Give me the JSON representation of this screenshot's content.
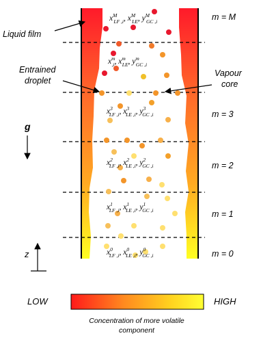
{
  "labels": {
    "liquid_film": "Liquid film",
    "entrained_droplet_line1": "Entrained",
    "entrained_droplet_line2": "droplet",
    "vapour_core_line1": "Vapour",
    "vapour_core_line2": "core",
    "gravity": "g",
    "height": "z"
  },
  "segments": [
    {
      "label": "m = M",
      "x_lf": "x",
      "x_lf_sup": "M",
      "x_lf_sub": "LF ,i",
      "x_le": "x",
      "x_le_sup": "M",
      "x_le_sub": "LE",
      "y_gc": "y",
      "y_gc_sup": "M",
      "y_gc_sub": "GC ,i"
    },
    {
      "label": "",
      "x_lf": "x",
      "x_lf_sup": "m",
      "x_lf_sub": ",i",
      "x_le": "x",
      "x_le_sup": "m",
      "x_le_sub": "LE",
      "y_gc": "y",
      "y_gc_sup": "m",
      "y_gc_sub": "GC ,i"
    },
    {
      "label": "m = 3",
      "x_lf": "x",
      "x_lf_sup": "3",
      "x_lf_sub": "LF ,i",
      "x_le": "x",
      "x_le_sup": "3",
      "x_le_sub": "LE ,i",
      "y_gc": "y",
      "y_gc_sup": "3",
      "y_gc_sub": "GC ,i"
    },
    {
      "label": "m = 2",
      "x_lf": "x",
      "x_lf_sup": "2",
      "x_lf_sub": "LF ,i",
      "x_le": "x",
      "x_le_sup": "2",
      "x_le_sub": "LE ,i",
      "y_gc": "y",
      "y_gc_sup": "2",
      "y_gc_sub": "GC ,i"
    },
    {
      "label": "m = 1",
      "x_lf": "x",
      "x_lf_sup": "1",
      "x_lf_sub": "LF ,i",
      "x_le": "x",
      "x_le_sup": "1",
      "x_le_sub": "LE ,i",
      "y_gc": "y",
      "y_gc_sup": "1",
      "y_gc_sub": "GC ,i"
    },
    {
      "label": "m = 0",
      "x_lf": "x",
      "x_lf_sup": "0",
      "x_lf_sub": "LF ,i",
      "x_le": "x",
      "x_le_sup": "0",
      "x_le_sub": "LE ,i",
      "y_gc": "y",
      "y_gc_sup": "0",
      "y_gc_sub": "GC ,i"
    }
  ],
  "legend": {
    "low": "LOW",
    "high": "HIGH",
    "caption_line1": "Concentration of more volatile",
    "caption_line2": "component",
    "colors": [
      "#ff1a1a",
      "#ff8a1f",
      "#ffd21f",
      "#ffff33"
    ]
  }
}
